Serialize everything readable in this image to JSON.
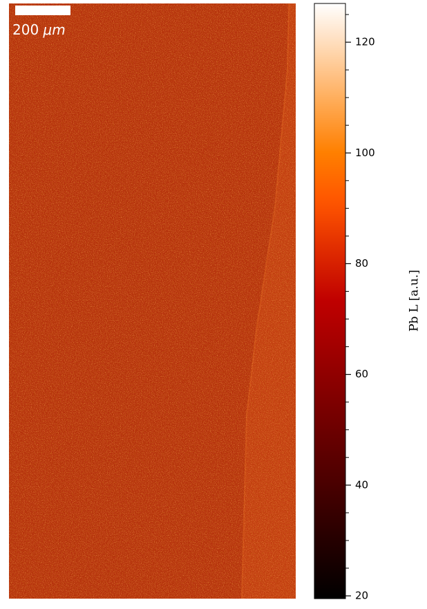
{
  "chart_data": {
    "type": "heatmap",
    "scale_bar": {
      "label": "200",
      "unit": "μm"
    },
    "colorbar": {
      "label": "Pb L  [a.u.]",
      "colormap": "gist_heat",
      "lim": [
        19.5,
        127
      ],
      "ticks": [
        20,
        40,
        60,
        80,
        100,
        120
      ],
      "minor_ticks": [
        25,
        30,
        35,
        45,
        50,
        55,
        65,
        70,
        75,
        85,
        90,
        95,
        105,
        110,
        115,
        125
      ]
    }
  }
}
